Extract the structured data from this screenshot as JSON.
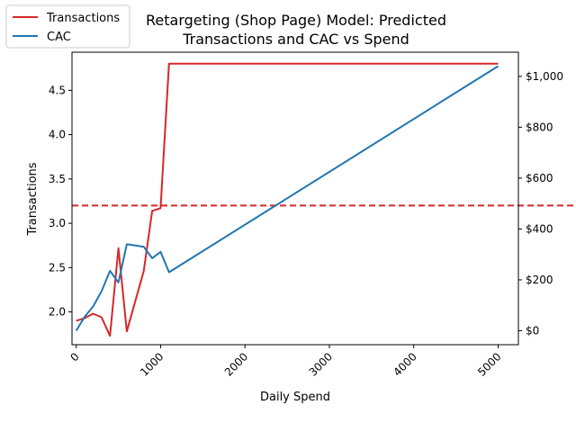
{
  "chart_data": {
    "type": "line",
    "title_line1": "Retargeting (Shop Page) Model: Predicted",
    "title_line2": "Transactions and CAC vs Spend",
    "xlabel": "Daily Spend",
    "ylabel_left": "Transactions",
    "xlim": [
      -50,
      5240
    ],
    "ylim_left": [
      1.63,
      4.93
    ],
    "ylim_right": [
      -55,
      1095
    ],
    "x_ticks": [
      0,
      1000,
      2000,
      3000,
      4000,
      5000
    ],
    "x_tick_labels": [
      "0",
      "1000",
      "2000",
      "3000",
      "4000",
      "5000"
    ],
    "y_left_ticks": [
      2.0,
      2.5,
      3.0,
      3.5,
      4.0,
      4.5
    ],
    "y_left_tick_labels": [
      "2.0",
      "2.5",
      "3.0",
      "3.5",
      "4.0",
      "4.5"
    ],
    "y_right_ticks": [
      0,
      200,
      400,
      600,
      800,
      1000
    ],
    "y_right_tick_labels": [
      "$0",
      "$200",
      "$400",
      "$600",
      "$800",
      "$1,000"
    ],
    "legend_position": "top-left",
    "grid": false,
    "reference_line": {
      "axis": "left",
      "value": 3.2,
      "color": "#d62728",
      "style": "dashed"
    },
    "series": [
      {
        "name": "Transactions",
        "axis": "left",
        "color": "#d62728",
        "x": [
          0,
          100,
          200,
          300,
          400,
          500,
          600,
          700,
          800,
          900,
          1000,
          1100,
          5000
        ],
        "values": [
          1.9,
          1.93,
          1.98,
          1.94,
          1.73,
          2.72,
          1.78,
          2.12,
          2.46,
          3.14,
          3.17,
          4.8,
          4.8
        ]
      },
      {
        "name": "CAC",
        "axis": "right",
        "color": "#1f77b4",
        "x": [
          0,
          100,
          200,
          300,
          400,
          500,
          600,
          700,
          800,
          900,
          1000,
          1100,
          5000
        ],
        "values": [
          0,
          55,
          95,
          155,
          235,
          190,
          340,
          335,
          330,
          285,
          310,
          230,
          1040
        ]
      }
    ]
  }
}
